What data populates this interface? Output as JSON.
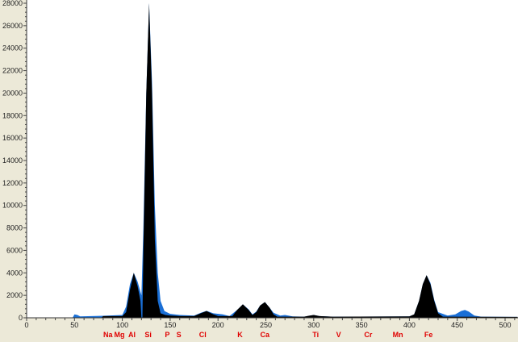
{
  "chart_data": {
    "type": "area",
    "title": "",
    "xlabel": "",
    "ylabel": "",
    "xlim": [
      0,
      513
    ],
    "ylim": [
      0,
      28000
    ],
    "x_ticks": [
      0,
      50,
      100,
      150,
      200,
      250,
      300,
      350,
      400,
      450,
      500
    ],
    "y_ticks": [
      0,
      2000,
      4000,
      6000,
      8000,
      10000,
      12000,
      14000,
      16000,
      18000,
      20000,
      22000,
      24000,
      26000,
      28000
    ],
    "grid": false,
    "colors": {
      "spectrum": "#1a6fd6",
      "fit": "#000000",
      "element_label": "#e00000",
      "frame": "#ece9d8",
      "plot_bg": "#ffffff"
    },
    "series": [
      {
        "color": "#1a6fd6",
        "points": [
          [
            0,
            0
          ],
          [
            48,
            0
          ],
          [
            50,
            300
          ],
          [
            53,
            250
          ],
          [
            56,
            120
          ],
          [
            80,
            180
          ],
          [
            100,
            250
          ],
          [
            104,
            1000
          ],
          [
            108,
            3000
          ],
          [
            112,
            4000
          ],
          [
            116,
            3200
          ],
          [
            120,
            2000
          ],
          [
            122,
            8000
          ],
          [
            125,
            20000
          ],
          [
            128,
            28000
          ],
          [
            131,
            21000
          ],
          [
            134,
            10000
          ],
          [
            137,
            4000
          ],
          [
            140,
            1500
          ],
          [
            144,
            600
          ],
          [
            150,
            350
          ],
          [
            160,
            250
          ],
          [
            175,
            200
          ],
          [
            182,
            450
          ],
          [
            188,
            620
          ],
          [
            195,
            400
          ],
          [
            205,
            300
          ],
          [
            212,
            150
          ],
          [
            220,
            700
          ],
          [
            226,
            1200
          ],
          [
            232,
            750
          ],
          [
            236,
            300
          ],
          [
            240,
            550
          ],
          [
            244,
            1100
          ],
          [
            249,
            1400
          ],
          [
            254,
            900
          ],
          [
            258,
            450
          ],
          [
            265,
            200
          ],
          [
            270,
            250
          ],
          [
            278,
            120
          ],
          [
            290,
            100
          ],
          [
            300,
            250
          ],
          [
            306,
            150
          ],
          [
            320,
            100
          ],
          [
            400,
            130
          ],
          [
            405,
            300
          ],
          [
            410,
            1500
          ],
          [
            414,
            3000
          ],
          [
            418,
            3800
          ],
          [
            422,
            3100
          ],
          [
            426,
            1600
          ],
          [
            430,
            500
          ],
          [
            440,
            200
          ],
          [
            448,
            300
          ],
          [
            454,
            600
          ],
          [
            458,
            700
          ],
          [
            462,
            550
          ],
          [
            468,
            200
          ],
          [
            475,
            100
          ],
          [
            513,
            80
          ]
        ]
      },
      {
        "color": "#000000",
        "points": [
          [
            0,
            0
          ],
          [
            78,
            0
          ],
          [
            80,
            150
          ],
          [
            100,
            150
          ],
          [
            104,
            500
          ],
          [
            108,
            2500
          ],
          [
            112,
            4000
          ],
          [
            116,
            2800
          ],
          [
            119,
            1500
          ],
          [
            120,
            0
          ],
          [
            121,
            0
          ],
          [
            122,
            6000
          ],
          [
            125,
            20000
          ],
          [
            128,
            28000
          ],
          [
            131,
            20000
          ],
          [
            134,
            7000
          ],
          [
            137,
            1500
          ],
          [
            140,
            400
          ],
          [
            145,
            250
          ],
          [
            150,
            200
          ],
          [
            160,
            150
          ],
          [
            175,
            150
          ],
          [
            182,
            400
          ],
          [
            188,
            600
          ],
          [
            194,
            350
          ],
          [
            200,
            150
          ],
          [
            215,
            150
          ],
          [
            220,
            700
          ],
          [
            226,
            1200
          ],
          [
            232,
            700
          ],
          [
            236,
            250
          ],
          [
            240,
            500
          ],
          [
            244,
            1100
          ],
          [
            249,
            1400
          ],
          [
            254,
            900
          ],
          [
            258,
            300
          ],
          [
            262,
            100
          ],
          [
            290,
            100
          ],
          [
            296,
            200
          ],
          [
            300,
            250
          ],
          [
            306,
            150
          ],
          [
            320,
            100
          ],
          [
            400,
            120
          ],
          [
            405,
            300
          ],
          [
            410,
            1500
          ],
          [
            414,
            3000
          ],
          [
            418,
            3800
          ],
          [
            422,
            3000
          ],
          [
            426,
            1500
          ],
          [
            430,
            400
          ],
          [
            435,
            100
          ],
          [
            513,
            80
          ]
        ]
      }
    ],
    "element_labels": [
      {
        "label": "Na",
        "x": 85
      },
      {
        "label": "Mg",
        "x": 97
      },
      {
        "label": "Al",
        "x": 110
      },
      {
        "label": "Si",
        "x": 127
      },
      {
        "label": "P",
        "x": 147
      },
      {
        "label": "S",
        "x": 159
      },
      {
        "label": "Cl",
        "x": 184
      },
      {
        "label": "K",
        "x": 223
      },
      {
        "label": "Ca",
        "x": 249
      },
      {
        "label": "Ti",
        "x": 302
      },
      {
        "label": "V",
        "x": 326
      },
      {
        "label": "Cr",
        "x": 357
      },
      {
        "label": "Mn",
        "x": 388
      },
      {
        "label": "Fe",
        "x": 420
      }
    ]
  }
}
